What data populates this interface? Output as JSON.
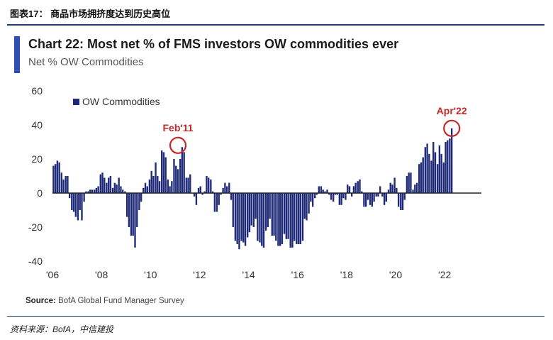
{
  "figure_caption": "图表17： 商品市场拥挤度达到历史高位",
  "chart_data": {
    "type": "bar",
    "title": "Chart 22: Most net % of FMS investors OW commodities ever",
    "subtitle": "Net % OW Commodities",
    "series": [
      {
        "name": "OW Commodities",
        "color": "#1e2a78",
        "points": [
          [
            2006.04,
            16
          ],
          [
            2006.12,
            17
          ],
          [
            2006.2,
            19
          ],
          [
            2006.28,
            18
          ],
          [
            2006.37,
            12
          ],
          [
            2006.45,
            8
          ],
          [
            2006.54,
            10
          ],
          [
            2006.62,
            10
          ],
          [
            2006.7,
            -3
          ],
          [
            2006.79,
            -10
          ],
          [
            2006.87,
            -11
          ],
          [
            2006.95,
            -14
          ],
          [
            2007.04,
            -16
          ],
          [
            2007.12,
            -10
          ],
          [
            2007.2,
            -16
          ],
          [
            2007.29,
            -5
          ],
          [
            2007.37,
            1
          ],
          [
            2007.46,
            1
          ],
          [
            2007.54,
            2
          ],
          [
            2007.62,
            2
          ],
          [
            2007.71,
            2
          ],
          [
            2007.79,
            3
          ],
          [
            2007.87,
            4
          ],
          [
            2007.96,
            11
          ],
          [
            2008.04,
            12
          ],
          [
            2008.12,
            9
          ],
          [
            2008.21,
            6
          ],
          [
            2008.29,
            9
          ],
          [
            2008.37,
            10
          ],
          [
            2008.46,
            3
          ],
          [
            2008.54,
            6
          ],
          [
            2008.62,
            5
          ],
          [
            2008.71,
            9
          ],
          [
            2008.79,
            4
          ],
          [
            2008.87,
            2
          ],
          [
            2008.96,
            1
          ],
          [
            2009.04,
            -14
          ],
          [
            2009.12,
            -20
          ],
          [
            2009.21,
            -25
          ],
          [
            2009.29,
            -25
          ],
          [
            2009.37,
            -32
          ],
          [
            2009.45,
            -20
          ],
          [
            2009.54,
            -10
          ],
          [
            2009.62,
            -5
          ],
          [
            2009.71,
            3
          ],
          [
            2009.79,
            6
          ],
          [
            2009.87,
            4
          ],
          [
            2009.96,
            8
          ],
          [
            2010.04,
            13
          ],
          [
            2010.12,
            10
          ],
          [
            2010.21,
            18
          ],
          [
            2010.29,
            10
          ],
          [
            2010.37,
            7
          ],
          [
            2010.46,
            25
          ],
          [
            2010.54,
            24
          ],
          [
            2010.62,
            21
          ],
          [
            2010.71,
            8
          ],
          [
            2010.79,
            4
          ],
          [
            2010.87,
            7
          ],
          [
            2010.96,
            20
          ],
          [
            2011.04,
            16
          ],
          [
            2011.12,
            14
          ],
          [
            2011.21,
            20
          ],
          [
            2011.29,
            27
          ],
          [
            2011.37,
            24
          ],
          [
            2011.46,
            9
          ],
          [
            2011.54,
            9
          ],
          [
            2011.62,
            11
          ],
          [
            2011.71,
            0
          ],
          [
            2011.79,
            -2
          ],
          [
            2011.87,
            -7
          ],
          [
            2011.96,
            3
          ],
          [
            2012.04,
            4
          ],
          [
            2012.12,
            -1
          ],
          [
            2012.21,
            1
          ],
          [
            2012.29,
            10
          ],
          [
            2012.37,
            9
          ],
          [
            2012.46,
            8
          ],
          [
            2012.54,
            1
          ],
          [
            2012.62,
            -11
          ],
          [
            2012.71,
            -11
          ],
          [
            2012.79,
            -7
          ],
          [
            2012.87,
            -1
          ],
          [
            2012.96,
            3
          ],
          [
            2013.04,
            6
          ],
          [
            2013.12,
            4
          ],
          [
            2013.21,
            6
          ],
          [
            2013.29,
            -4
          ],
          [
            2013.37,
            -20
          ],
          [
            2013.46,
            -28
          ],
          [
            2013.54,
            -30
          ],
          [
            2013.62,
            -33
          ],
          [
            2013.71,
            -28
          ],
          [
            2013.79,
            -29
          ],
          [
            2013.87,
            -31
          ],
          [
            2013.96,
            -26
          ],
          [
            2014.04,
            -23
          ],
          [
            2014.12,
            -19
          ],
          [
            2014.21,
            -20
          ],
          [
            2014.29,
            -15
          ],
          [
            2014.37,
            -28
          ],
          [
            2014.46,
            -29
          ],
          [
            2014.54,
            -31
          ],
          [
            2014.62,
            -32
          ],
          [
            2014.71,
            -22
          ],
          [
            2014.79,
            -20
          ],
          [
            2014.87,
            -15
          ],
          [
            2014.96,
            -25
          ],
          [
            2015.04,
            -25
          ],
          [
            2015.12,
            -28
          ],
          [
            2015.21,
            -31
          ],
          [
            2015.29,
            -31
          ],
          [
            2015.37,
            -30
          ],
          [
            2015.46,
            -24
          ],
          [
            2015.54,
            -27
          ],
          [
            2015.62,
            -27
          ],
          [
            2015.71,
            -32
          ],
          [
            2015.79,
            -32
          ],
          [
            2015.87,
            -28
          ],
          [
            2015.96,
            -30
          ],
          [
            2016.04,
            -30
          ],
          [
            2016.12,
            -30
          ],
          [
            2016.21,
            -28
          ],
          [
            2016.29,
            -15
          ],
          [
            2016.37,
            -16
          ],
          [
            2016.46,
            -12
          ],
          [
            2016.54,
            -5
          ],
          [
            2016.62,
            -8
          ],
          [
            2016.71,
            -3
          ],
          [
            2016.79,
            -1
          ],
          [
            2016.87,
            4
          ],
          [
            2016.96,
            4
          ],
          [
            2017.04,
            2
          ],
          [
            2017.12,
            1
          ],
          [
            2017.21,
            2
          ],
          [
            2017.29,
            -1
          ],
          [
            2017.37,
            -4
          ],
          [
            2017.46,
            -5
          ],
          [
            2017.54,
            -1
          ],
          [
            2017.62,
            -1
          ],
          [
            2017.71,
            -7
          ],
          [
            2017.79,
            -7
          ],
          [
            2017.87,
            -3
          ],
          [
            2017.96,
            -4
          ],
          [
            2018.04,
            5
          ],
          [
            2018.12,
            4
          ],
          [
            2018.21,
            -2
          ],
          [
            2018.29,
            4
          ],
          [
            2018.37,
            6
          ],
          [
            2018.46,
            7
          ],
          [
            2018.54,
            8
          ],
          [
            2018.62,
            1
          ],
          [
            2018.71,
            -8
          ],
          [
            2018.79,
            -8
          ],
          [
            2018.87,
            -4
          ],
          [
            2018.96,
            -7
          ],
          [
            2019.04,
            -8
          ],
          [
            2019.12,
            -5
          ],
          [
            2019.21,
            -2
          ],
          [
            2019.29,
            -2
          ],
          [
            2019.37,
            4
          ],
          [
            2019.46,
            -2
          ],
          [
            2019.54,
            -7
          ],
          [
            2019.62,
            -5
          ],
          [
            2019.71,
            2
          ],
          [
            2019.79,
            6
          ],
          [
            2019.87,
            5
          ],
          [
            2019.96,
            9
          ],
          [
            2020.04,
            3
          ],
          [
            2020.12,
            -8
          ],
          [
            2020.21,
            -10
          ],
          [
            2020.29,
            -10
          ],
          [
            2020.37,
            -4
          ],
          [
            2020.46,
            10
          ],
          [
            2020.54,
            12
          ],
          [
            2020.62,
            12
          ],
          [
            2020.71,
            2
          ],
          [
            2020.79,
            5
          ],
          [
            2020.87,
            6
          ],
          [
            2020.96,
            17
          ],
          [
            2021.04,
            18
          ],
          [
            2021.12,
            21
          ],
          [
            2021.21,
            27
          ],
          [
            2021.29,
            29
          ],
          [
            2021.37,
            23
          ],
          [
            2021.46,
            19
          ],
          [
            2021.54,
            30
          ],
          [
            2021.62,
            24
          ],
          [
            2021.71,
            17
          ],
          [
            2021.79,
            28
          ],
          [
            2021.87,
            23
          ],
          [
            2021.96,
            18
          ],
          [
            2022.04,
            30
          ],
          [
            2022.12,
            31
          ],
          [
            2022.21,
            32
          ],
          [
            2022.29,
            38
          ]
        ]
      }
    ],
    "ylim": [
      -40,
      60
    ],
    "yticks": [
      -40,
      -20,
      0,
      20,
      40,
      60
    ],
    "xlim": [
      2006,
      2023.5
    ],
    "xticks": [
      {
        "x": 2006,
        "label": "'06"
      },
      {
        "x": 2008,
        "label": "'08"
      },
      {
        "x": 2010,
        "label": "'10"
      },
      {
        "x": 2012,
        "label": "'12"
      },
      {
        "x": 2014,
        "label": "'14"
      },
      {
        "x": 2016,
        "label": "'16"
      },
      {
        "x": 2018,
        "label": "'18"
      },
      {
        "x": 2020,
        "label": "'20"
      },
      {
        "x": 2022,
        "label": "'22"
      }
    ],
    "grid": false,
    "legend": "top-left",
    "annotations": [
      {
        "label": "Feb'11",
        "x": 2011.12,
        "y": 28,
        "color": "#c62828"
      },
      {
        "label": "Apr'22",
        "x": 2022.29,
        "y": 38,
        "color": "#c62828"
      }
    ]
  },
  "source": {
    "label": "Source:",
    "text": "BofA Global Fund Manager Survey"
  },
  "data_source": "资料来源：BofA，中信建投"
}
